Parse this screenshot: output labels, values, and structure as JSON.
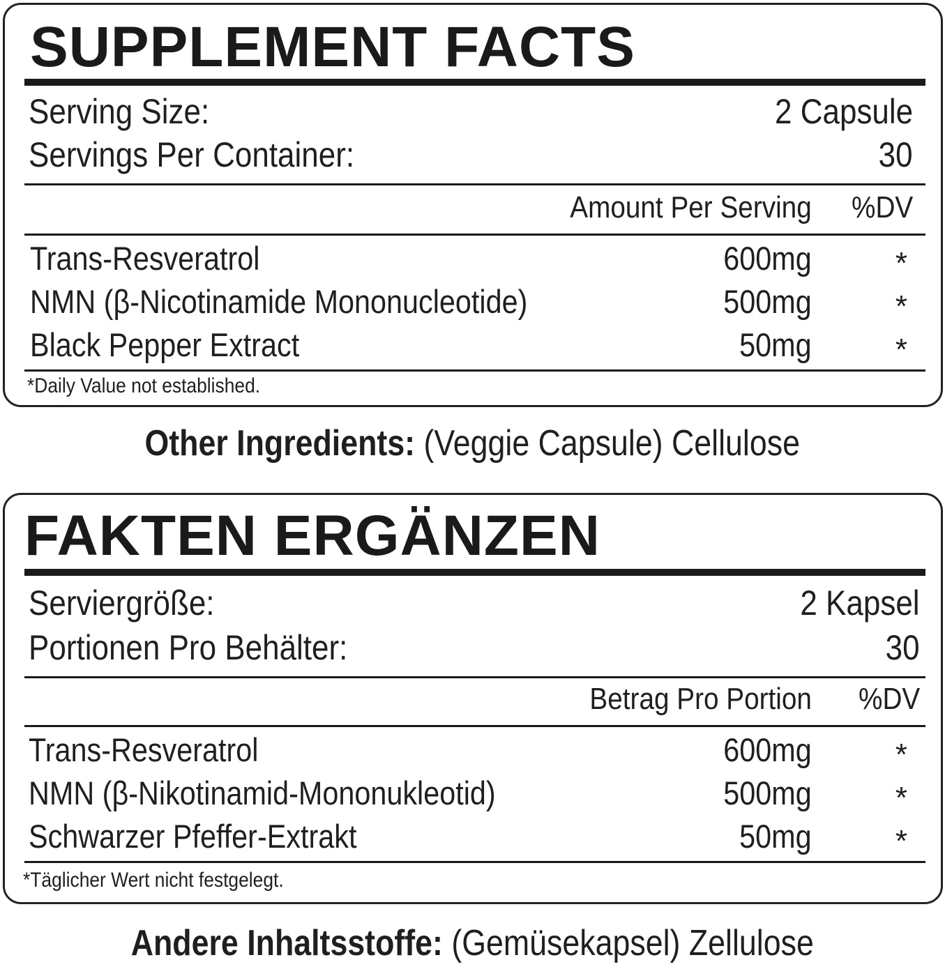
{
  "panels": [
    {
      "title": "SUPPLEMENT FACTS",
      "serving_size_label": "Serving Size:",
      "serving_size_value": "2 Capsule",
      "servings_label": "Servings Per Container:",
      "servings_value": "30",
      "amount_header": "Amount Per Serving",
      "dv_header": "%DV",
      "rows": [
        {
          "name": "Trans-Resveratrol",
          "amount": "600mg",
          "dv": "*"
        },
        {
          "name": "NMN (β-Nicotinamide Mononucleotide)",
          "amount": "500mg",
          "dv": "*"
        },
        {
          "name": "Black Pepper Extract",
          "amount": "50mg",
          "dv": "*"
        }
      ],
      "footnote": "*Daily Value not established.",
      "other_label": "Other Ingredients:",
      "other_value": " (Veggie Capsule) Cellulose"
    },
    {
      "title": "FAKTEN ERGÄNZEN",
      "serving_size_label": "Serviergröße:",
      "serving_size_value": "2 Kapsel",
      "servings_label": "Portionen Pro Behälter:",
      "servings_value": "30",
      "amount_header": "Betrag Pro Portion",
      "dv_header": "%DV",
      "rows": [
        {
          "name": "Trans-Resveratrol",
          "amount": "600mg",
          "dv": "*"
        },
        {
          "name": "NMN (β-Nikotinamid-Mononukleotid)",
          "amount": "500mg",
          "dv": "*"
        },
        {
          "name": "Schwarzer Pfeffer-Extrakt",
          "amount": "50mg",
          "dv": "*"
        }
      ],
      "footnote": "*Täglicher Wert nicht festgelegt.",
      "other_label": "Andere Inhaltsstoffe:",
      "other_value": " (Gemüsekapsel) Zellulose"
    }
  ]
}
